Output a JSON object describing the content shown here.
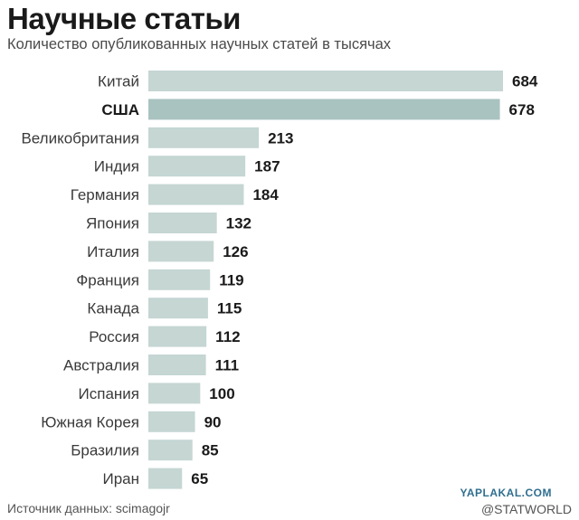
{
  "chart_data": {
    "type": "bar",
    "orientation": "horizontal",
    "title": "Научные статьи",
    "subtitle": "Количество опубликованных научных статей в тысячах",
    "categories": [
      "Китай",
      "США",
      "Великобритания",
      "Индия",
      "Германия",
      "Япония",
      "Италия",
      "Франция",
      "Канада",
      "Россия",
      "Австралия",
      "Испания",
      "Южная Корея",
      "Бразилия",
      "Иран"
    ],
    "values": [
      684,
      678,
      213,
      187,
      184,
      132,
      126,
      119,
      115,
      112,
      111,
      100,
      90,
      85,
      65
    ],
    "value_labels": [
      "684",
      "678",
      "213",
      "187",
      "184",
      "132",
      "126",
      "119",
      "115",
      "112",
      "111",
      "100",
      "90",
      "85",
      "65"
    ],
    "highlight": "США",
    "grid": false,
    "legend": "none"
  },
  "colors": {
    "bar": "#c5d6d3",
    "bar_highlight": "#a9c3c0"
  },
  "footer": {
    "source": "Источник данных: scimagojr",
    "watermark": "YAPLAKAL.COM",
    "credit": "@STATWORLD"
  }
}
